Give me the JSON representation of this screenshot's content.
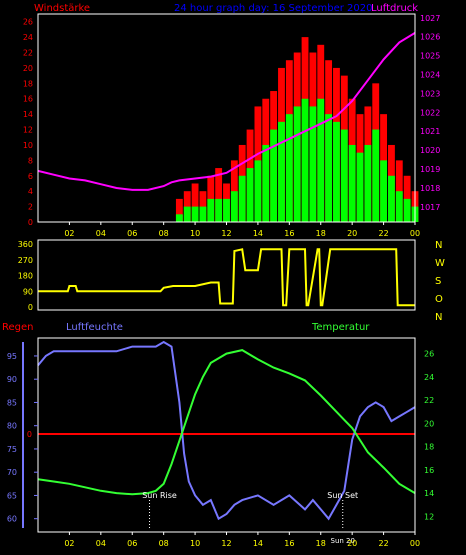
{
  "colors": {
    "background": "#000000",
    "wind_max": "#ff0000",
    "wind_avg": "#00ff00",
    "pressure": "#ff00ff",
    "direction": "#ffff00",
    "humidity": "#7777ff",
    "temperature": "#33ff33",
    "rain": "#ff0000",
    "axis_yellow": "#ffff00",
    "frame": "#ffffff"
  },
  "chart_data": [
    {
      "type": "bar",
      "title": "24 hour graph day: 16 September 2020",
      "left_label": "Windstärke",
      "right_label": "Luftdruck",
      "y_ticks": [
        "0",
        "2",
        "4",
        "6",
        "8",
        "10",
        "12",
        "14",
        "16",
        "18",
        "20",
        "22",
        "24",
        "26"
      ],
      "ylim": [
        0,
        27
      ],
      "y2_ticks": [
        "1017",
        "1018",
        "1019",
        "1020",
        "1021",
        "1022",
        "1023",
        "1024",
        "1025",
        "1026",
        "1027"
      ],
      "y2lim": [
        1016.2,
        1027.2
      ],
      "x_ticks": [
        "02",
        "04",
        "06",
        "08",
        "10",
        "12",
        "14",
        "16",
        "18",
        "20",
        "22",
        "00"
      ],
      "x_hours": [
        0,
        24
      ],
      "series": [
        {
          "kind": "wind_max",
          "x": [
            8.5,
            9,
            9.5,
            10,
            10.5,
            11,
            11.5,
            12,
            12.5,
            13,
            13.5,
            14,
            14.5,
            15,
            15.5,
            16,
            16.5,
            17,
            17.5,
            18,
            18.5,
            19,
            19.5,
            20,
            20.5,
            21,
            21.5,
            22,
            22.5,
            23,
            23.5,
            24
          ],
          "y": [
            0,
            3,
            4,
            5,
            4,
            6,
            7,
            5,
            8,
            10,
            12,
            15,
            16,
            17,
            20,
            21,
            22,
            24,
            22,
            23,
            21,
            20,
            19,
            16,
            14,
            15,
            18,
            14,
            10,
            8,
            6,
            4
          ]
        },
        {
          "kind": "wind_avg",
          "x": [
            8.5,
            9,
            9.5,
            10,
            10.5,
            11,
            11.5,
            12,
            12.5,
            13,
            13.5,
            14,
            14.5,
            15,
            15.5,
            16,
            16.5,
            17,
            17.5,
            18,
            18.5,
            19,
            19.5,
            20,
            20.5,
            21,
            21.5,
            22,
            22.5,
            23,
            23.5,
            24
          ],
          "y": [
            0,
            1,
            2,
            2,
            2,
            3,
            3,
            3,
            4,
            6,
            7,
            8,
            10,
            12,
            13,
            14,
            15,
            16,
            15,
            16,
            14,
            13,
            12,
            10,
            9,
            10,
            12,
            8,
            6,
            4,
            3,
            2
          ]
        },
        {
          "kind": "pressure",
          "x": [
            0,
            1,
            2,
            3,
            4,
            5,
            6,
            7,
            8,
            8.5,
            9,
            10,
            11,
            12,
            13,
            14,
            15,
            16,
            17,
            18,
            19,
            20,
            21,
            22,
            23,
            24
          ],
          "y": [
            1018.9,
            1018.7,
            1018.5,
            1018.4,
            1018.2,
            1018.0,
            1017.9,
            1017.9,
            1018.1,
            1018.3,
            1018.4,
            1018.5,
            1018.6,
            1018.8,
            1019.3,
            1019.8,
            1020.2,
            1020.6,
            1021.0,
            1021.4,
            1021.8,
            1022.6,
            1023.7,
            1024.8,
            1025.7,
            1026.2
          ]
        }
      ]
    },
    {
      "type": "line",
      "title": "",
      "y_ticks": [
        "0",
        "90",
        "180",
        "270",
        "360"
      ],
      "ylim": [
        0,
        360
      ],
      "compass": [
        "N",
        "W",
        "S",
        "O",
        "N"
      ],
      "x_ticks": [
        "02",
        "04",
        "06",
        "08",
        "10",
        "12",
        "14",
        "16",
        "18",
        "20",
        "22",
        "00"
      ],
      "x_hours": [
        0,
        24
      ],
      "series": [
        {
          "kind": "direction",
          "x": [
            0,
            1.9,
            2.0,
            2.4,
            2.5,
            3,
            4,
            5,
            6,
            7,
            7.8,
            8,
            8.6,
            9,
            10,
            11,
            11.5,
            11.6,
            12.4,
            12.5,
            13,
            13.2,
            14,
            14.2,
            14.5,
            14.6,
            15.5,
            15.6,
            15.8,
            16.0,
            16.1,
            17.0,
            17.1,
            17.2,
            17.8,
            17.9,
            18.0,
            18.1,
            18.6,
            18.7,
            19.4,
            19.5,
            21,
            22,
            22.8,
            22.9,
            23,
            24
          ],
          "y": [
            90,
            90,
            120,
            120,
            90,
            90,
            90,
            90,
            90,
            90,
            90,
            110,
            120,
            120,
            120,
            140,
            140,
            20,
            20,
            320,
            330,
            210,
            210,
            330,
            330,
            330,
            330,
            10,
            10,
            330,
            330,
            330,
            10,
            10,
            330,
            330,
            10,
            10,
            330,
            330,
            330,
            330,
            330,
            330,
            330,
            10,
            10,
            10
          ]
        }
      ]
    },
    {
      "type": "line",
      "title": "",
      "left_label": "Regen",
      "humidity_label": "Luftfeuchte",
      "temperature_label": "Temperatur",
      "y_ticks": [
        "60",
        "65",
        "70",
        "75",
        "80",
        "85",
        "90",
        "95"
      ],
      "ylim": [
        58,
        98
      ],
      "y2_ticks": [
        "12",
        "14",
        "16",
        "18",
        "20",
        "22",
        "24",
        "26"
      ],
      "y2lim": [
        11,
        27
      ],
      "rain_marker": "0",
      "x_ticks": [
        "02",
        "04",
        "06",
        "08",
        "10",
        "12",
        "14",
        "16",
        "18",
        "20",
        "22",
        "00"
      ],
      "x_hours": [
        0,
        24
      ],
      "annotations": [
        {
          "text": "Sun Rise",
          "x": 7.1
        },
        {
          "text": "Sun Set",
          "x": 19.4
        },
        {
          "text": "Sun 20",
          "x": 19.4
        }
      ],
      "series": [
        {
          "kind": "humidity",
          "x": [
            0,
            0.5,
            1,
            2,
            3,
            4,
            5,
            6,
            7,
            7.5,
            8,
            8.5,
            9,
            9.3,
            9.6,
            10,
            10.5,
            11,
            11.5,
            12,
            12.5,
            13,
            14,
            15,
            16,
            17,
            17.5,
            18,
            18.5,
            19,
            19.5,
            20,
            20.5,
            21,
            21.5,
            22,
            22.5,
            23,
            23.5,
            24
          ],
          "y": [
            93,
            95,
            96,
            96,
            96,
            96,
            96,
            97,
            97,
            97,
            98,
            97,
            85,
            74,
            68,
            65,
            63,
            64,
            60,
            61,
            63,
            64,
            65,
            63,
            65,
            62,
            64,
            62,
            60,
            63,
            66,
            77,
            82,
            84,
            85,
            84,
            81,
            82,
            83,
            84
          ]
        },
        {
          "kind": "temperature",
          "x": [
            0,
            1,
            2,
            3,
            4,
            5,
            6,
            7,
            7.5,
            8,
            8.5,
            9,
            9.5,
            10,
            10.5,
            11,
            12,
            13,
            14,
            15,
            16,
            17,
            18,
            19,
            19.5,
            20,
            21,
            22,
            23,
            24
          ],
          "y": [
            15.2,
            15.0,
            14.8,
            14.5,
            14.2,
            14.0,
            13.9,
            14.0,
            14.2,
            14.8,
            16.5,
            18.5,
            20.5,
            22.5,
            24.0,
            25.2,
            26.0,
            26.3,
            25.5,
            24.8,
            24.3,
            23.7,
            22.4,
            21.0,
            20.3,
            19.6,
            17.5,
            16.2,
            14.8,
            14.0
          ]
        }
      ]
    }
  ]
}
